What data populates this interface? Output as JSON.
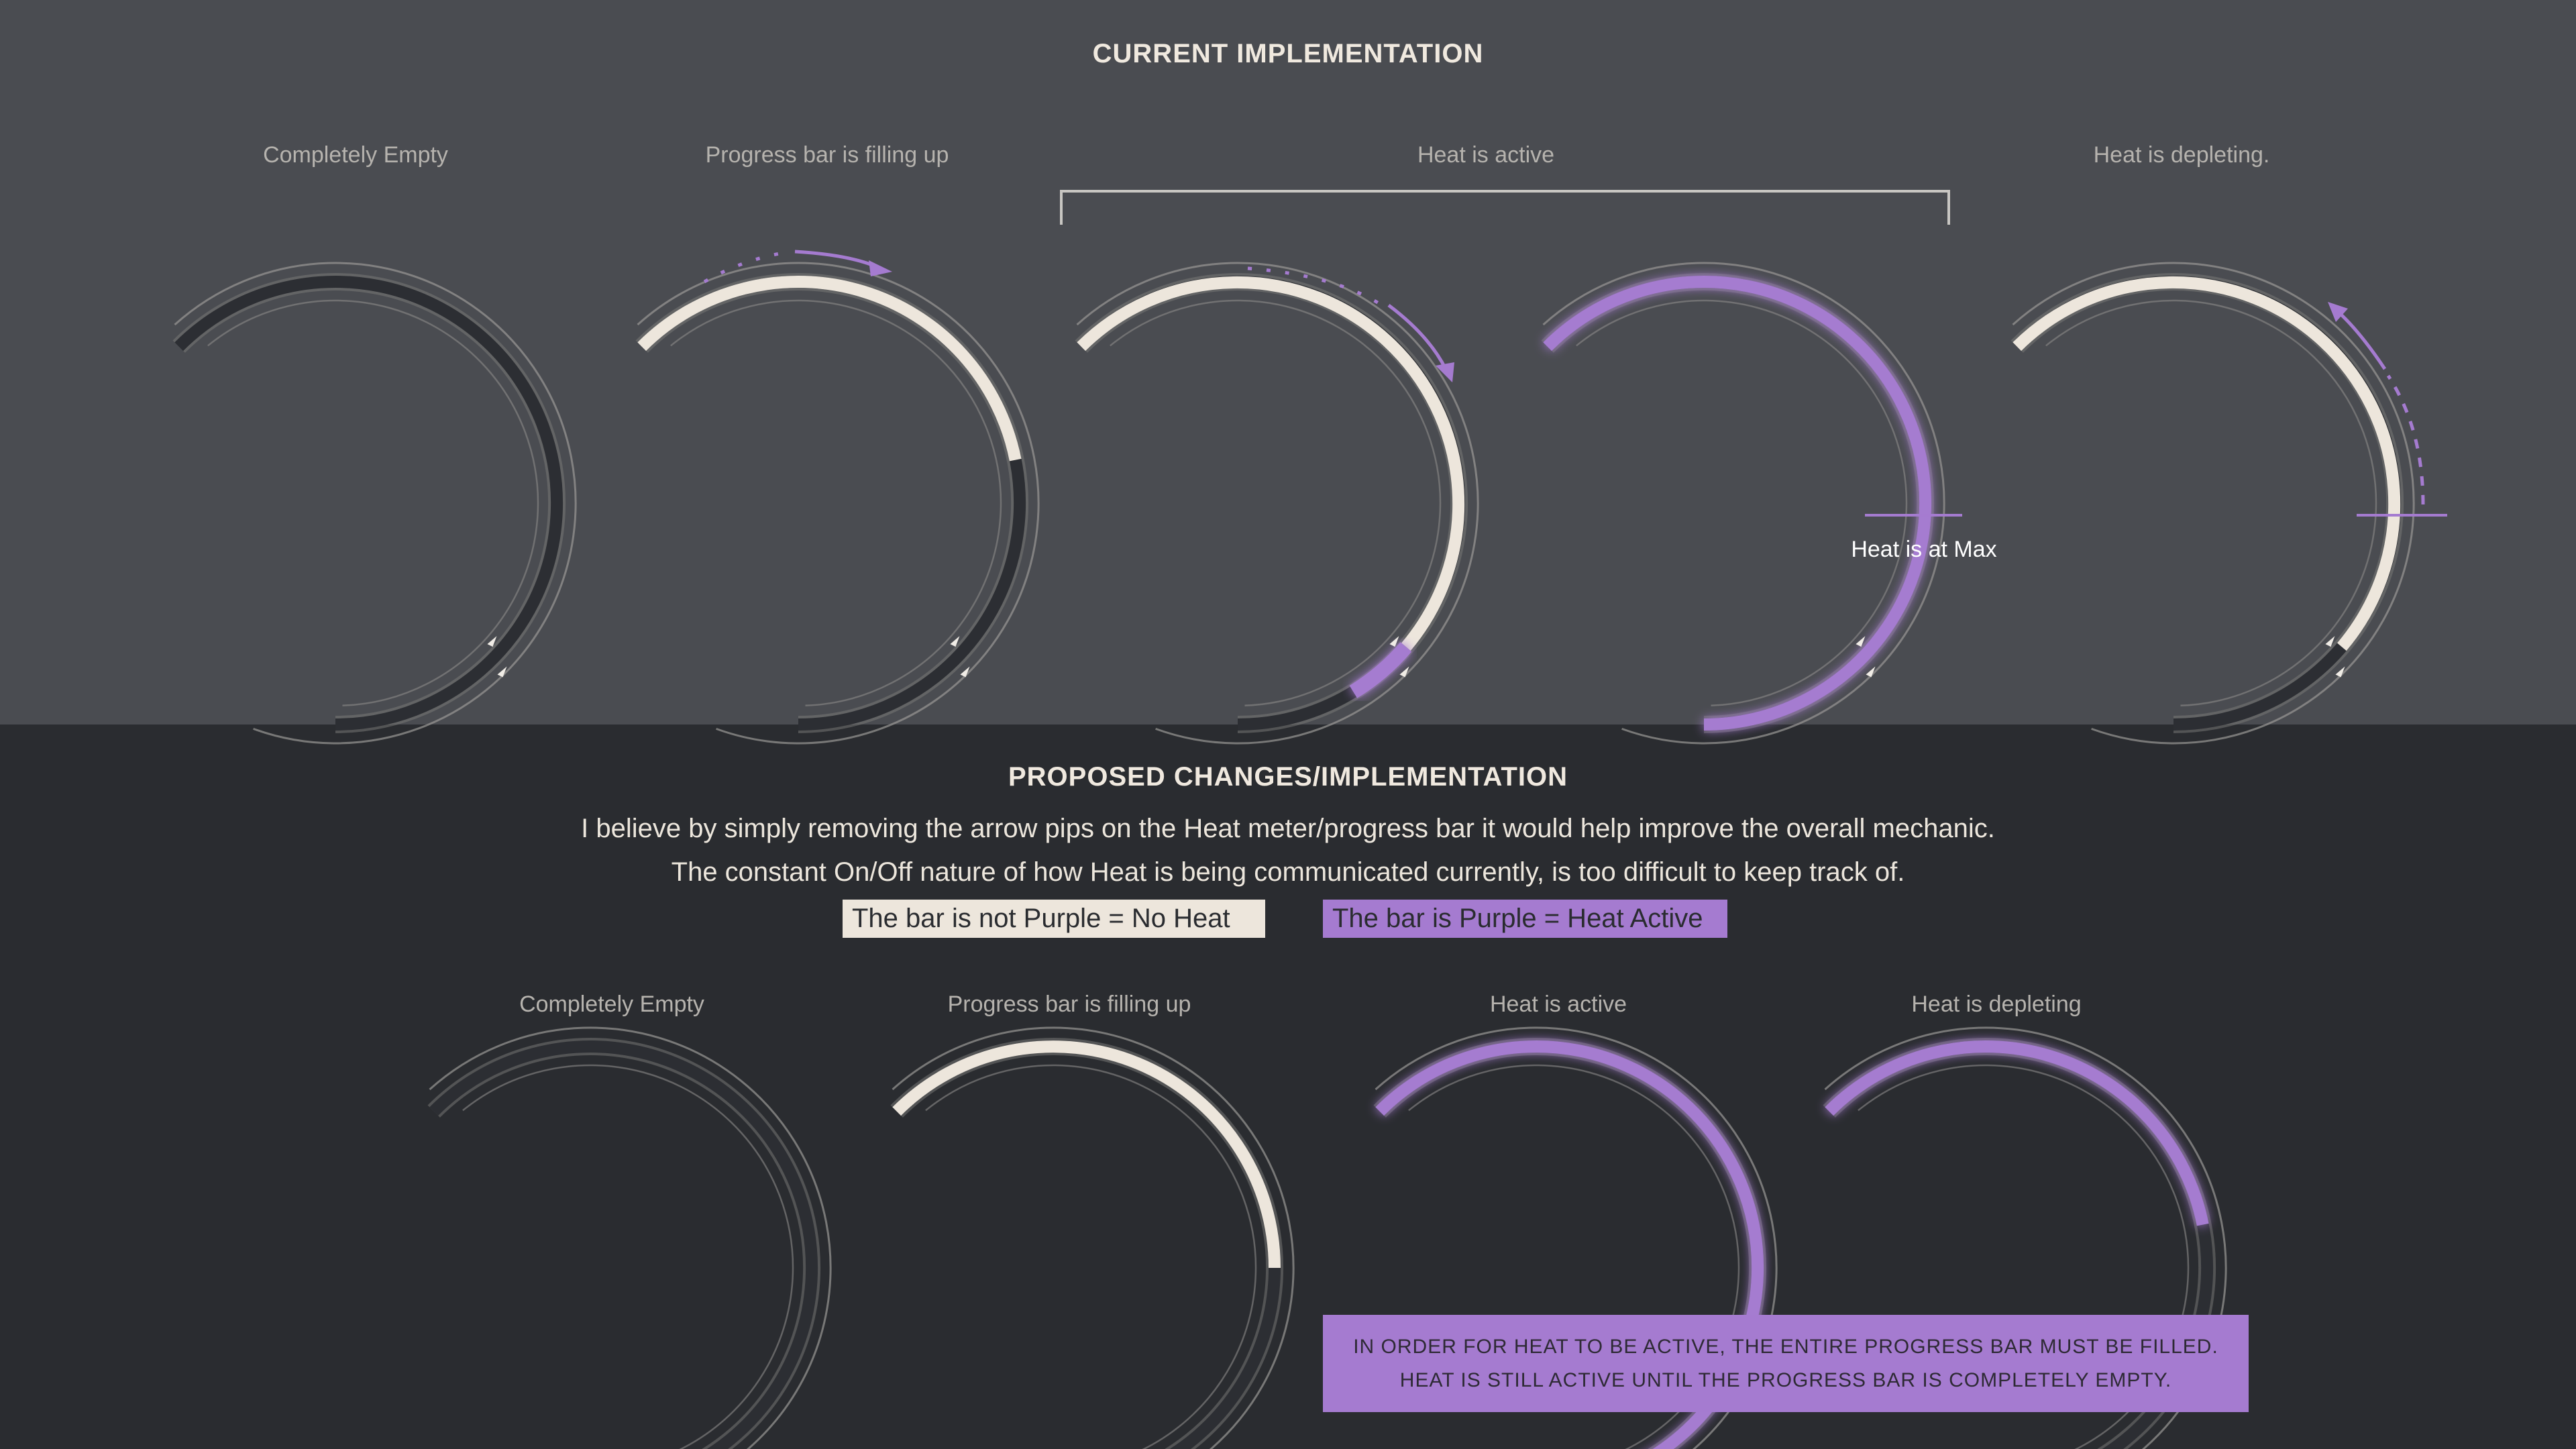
{
  "current": {
    "title": "CURRENT IMPLEMENTATION",
    "labels": [
      "Completely Empty",
      "Progress bar is filling up",
      "Heat is active",
      "Heat is depleting."
    ],
    "max_label": "Heat is at Max"
  },
  "proposed": {
    "title": "PROPOSED CHANGES/IMPLEMENTATION",
    "description_lines": [
      "I believe by simply removing the arrow pips on the Heat meter/progress bar it would help improve the overall mechanic.",
      "The constant On/Off nature of how Heat is being communicated currently, is too difficult to keep track of."
    ],
    "legend": {
      "no_heat": "The bar is not Purple = No Heat",
      "heat": "The bar is Purple = Heat Active"
    },
    "labels": [
      "Completely Empty",
      "Progress bar is filling up",
      "Heat is active",
      "Heat is depleting"
    ],
    "note_lines": [
      "IN ORDER FOR HEAT TO BE ACTIVE, THE ENTIRE PROGRESS BAR MUST BE FILLED.",
      "HEAT IS STILL ACTIVE UNTIL THE PROGRESS BAR IS COMPLETELY EMPTY."
    ]
  },
  "gauges": {
    "current": [
      {
        "state": "empty",
        "fill": 0,
        "heat": false,
        "pips": true
      },
      {
        "state": "filling",
        "fill": 0.55,
        "heat": false,
        "pips": true
      },
      {
        "state": "heat-overflow",
        "fill": 0.78,
        "heat": false,
        "pips": true,
        "overflow": 0.08
      },
      {
        "state": "heat-max",
        "fill": 1.0,
        "heat": true,
        "pips": true
      },
      {
        "state": "depleting",
        "fill": 0.78,
        "heat": false,
        "pips": true
      }
    ],
    "proposed": [
      {
        "state": "empty",
        "fill": 0,
        "heat": false,
        "pips": false
      },
      {
        "state": "filling",
        "fill": 0.6,
        "heat": false,
        "pips": false
      },
      {
        "state": "heat-active",
        "fill": 1.0,
        "heat": true,
        "pips": false
      },
      {
        "state": "heat-depleting",
        "fill": 0.55,
        "heat": true,
        "pips": false
      }
    ]
  },
  "colors": {
    "top_bg": "#4a4c51",
    "bottom_bg": "#2a2c30",
    "fill": "#ede6dc",
    "heat": "#a57bd0",
    "track": "#2c2e33"
  }
}
